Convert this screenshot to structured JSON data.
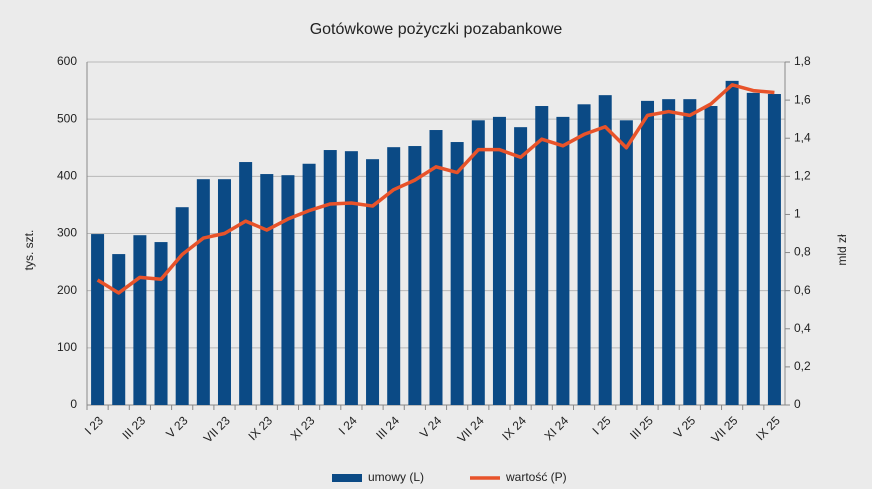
{
  "chart_data": {
    "type": "bar-line",
    "title": "Gotówkowe pożyczki pozabankowe",
    "categories": [
      "I 23",
      null,
      "III 23",
      null,
      "V 23",
      null,
      "VII 23",
      null,
      "IX 23",
      null,
      "XI 23",
      null,
      "I 24",
      null,
      "III 24",
      null,
      "V 24",
      null,
      "VII 24",
      null,
      "IX 24",
      null,
      "XI 24",
      null,
      "I 25",
      null,
      "III 25",
      null,
      "V 25",
      null,
      "VII 25",
      null,
      "IX 25"
    ],
    "series": [
      {
        "name": "umowy (L)",
        "type": "bar",
        "color": "#0b4a85",
        "axis": "y",
        "values": [
          299,
          264,
          297,
          285,
          346,
          395,
          395,
          425,
          404,
          402,
          422,
          446,
          444,
          430,
          451,
          453,
          481,
          460,
          498,
          504,
          486,
          523,
          504,
          526,
          542,
          498,
          532,
          535,
          535,
          523,
          567,
          546,
          544
        ]
      },
      {
        "name": "wartość (P)",
        "type": "line",
        "color": "#e8532a",
        "axis": "y2",
        "values": [
          0.656,
          0.588,
          0.67,
          0.66,
          0.79,
          0.876,
          0.9,
          0.965,
          0.918,
          0.976,
          1.02,
          1.055,
          1.06,
          1.044,
          1.13,
          1.18,
          1.25,
          1.22,
          1.34,
          1.34,
          1.3,
          1.395,
          1.36,
          1.42,
          1.46,
          1.35,
          1.52,
          1.54,
          1.52,
          1.58,
          1.68,
          1.65,
          1.64
        ]
      }
    ],
    "ylabel": "tys. szt.",
    "y2label": "mld zł",
    "ylim": [
      0,
      600
    ],
    "yticks": [
      0,
      100,
      200,
      300,
      400,
      500,
      600
    ],
    "y2lim": [
      0,
      1.8
    ],
    "y2ticks": [
      0,
      {
        "value": 0.2,
        "label": "0,2"
      },
      {
        "value": 0.4,
        "label": "0,4"
      },
      {
        "value": 0.6,
        "label": "0,6"
      },
      {
        "value": 0.8,
        "label": "0,8"
      },
      1,
      {
        "value": 1.2,
        "label": "1,2"
      },
      {
        "value": 1.4,
        "label": "1,4"
      },
      {
        "value": 1.6,
        "label": "1,6"
      },
      {
        "value": 1.8,
        "label": "1,8"
      }
    ],
    "grid": true,
    "legend": "bottom"
  }
}
